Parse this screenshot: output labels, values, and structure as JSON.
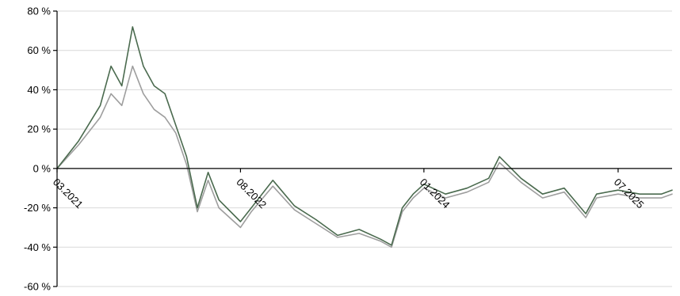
{
  "chart_data": {
    "type": "line",
    "title": "",
    "xlabel": "",
    "ylabel": "",
    "ylim": [
      -60,
      80
    ],
    "y_ticks": [
      80,
      60,
      40,
      20,
      0,
      -20,
      -40,
      -60
    ],
    "y_tick_labels": [
      "80 %",
      "60 %",
      "40 %",
      "20 %",
      "0 %",
      "-20 %",
      "-40 %",
      "-60 %"
    ],
    "x_range": [
      "2021-03",
      "2025-12"
    ],
    "x_ticks": [
      "2021-03",
      "2022-08",
      "2024-01",
      "2025-07"
    ],
    "x_tick_labels": [
      "03.2021",
      "08.2022",
      "01.2024",
      "07.2025"
    ],
    "grid": "horizontal",
    "legend": "none",
    "x": [
      "2021-03",
      "2021-05",
      "2021-07",
      "2021-08",
      "2021-09",
      "2021-10",
      "2021-11",
      "2021-12",
      "2022-01",
      "2022-02",
      "2022-03",
      "2022-04",
      "2022-05",
      "2022-06",
      "2022-08",
      "2022-09",
      "2022-11",
      "2023-01",
      "2023-03",
      "2023-05",
      "2023-07",
      "2023-09",
      "2023-10",
      "2023-11",
      "2023-12",
      "2024-01",
      "2024-03",
      "2024-05",
      "2024-07",
      "2024-08",
      "2024-10",
      "2024-12",
      "2025-02",
      "2025-04",
      "2025-05",
      "2025-07",
      "2025-09",
      "2025-11",
      "2025-12"
    ],
    "series": [
      {
        "color": "#4a6a4e",
        "values": [
          0,
          14,
          32,
          52,
          42,
          72,
          52,
          42,
          38,
          22,
          6,
          -20,
          -2,
          -16,
          -27,
          -20,
          -6,
          -19,
          -26,
          -34,
          -31,
          -36,
          -39,
          -20,
          -13,
          -8,
          -13,
          -10,
          -5,
          6,
          -5,
          -13,
          -10,
          -23,
          -13,
          -11,
          -13,
          -13,
          -11
        ]
      },
      {
        "color": "#9e9e9e",
        "values": [
          0,
          12,
          26,
          38,
          32,
          52,
          38,
          30,
          26,
          18,
          2,
          -22,
          -6,
          -20,
          -30,
          -22,
          -9,
          -21,
          -28,
          -35,
          -33,
          -37,
          -40,
          -22,
          -15,
          -10,
          -15,
          -12,
          -7,
          3,
          -7,
          -15,
          -12,
          -25,
          -15,
          -13,
          -15,
          -15,
          -13
        ]
      }
    ]
  }
}
